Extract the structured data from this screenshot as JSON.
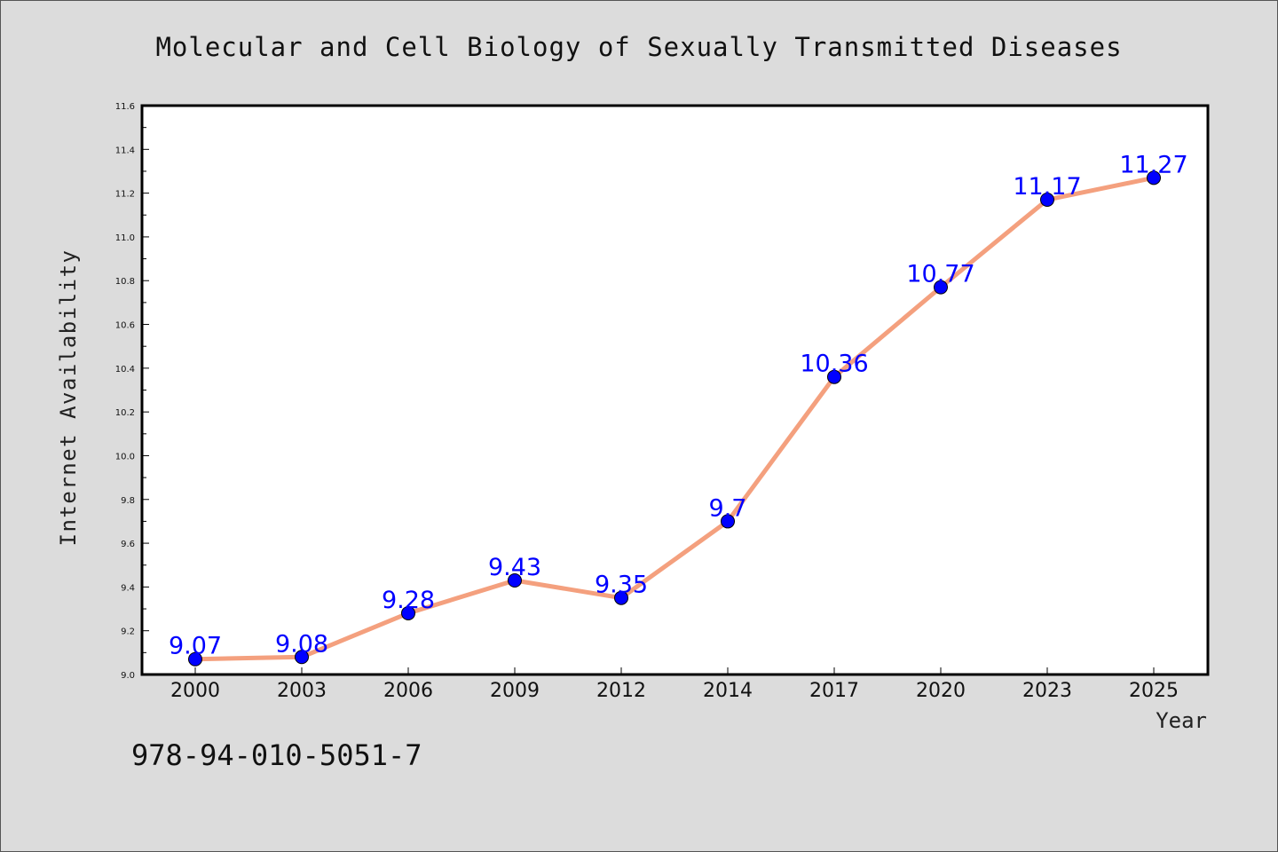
{
  "chart_data": {
    "type": "line",
    "title": "Molecular and Cell Biology of Sexually Transmitted Diseases",
    "xlabel": "Year",
    "ylabel": "Internet Availability",
    "categories": [
      "2000",
      "2003",
      "2006",
      "2009",
      "2012",
      "2014",
      "2017",
      "2020",
      "2023",
      "2025"
    ],
    "values": [
      9.07,
      9.08,
      9.28,
      9.43,
      9.35,
      9.7,
      10.36,
      10.77,
      11.17,
      11.27
    ],
    "data_labels": [
      "9.07",
      "9.08",
      "9.28",
      "9.43",
      "9.35",
      "9.7",
      "10.36",
      "10.77",
      "11.17",
      "11.27"
    ],
    "ylim": [
      9.0,
      11.6
    ],
    "yticks": [
      "9.0",
      "9.2",
      "9.4",
      "9.6",
      "9.8",
      "10.0",
      "10.2",
      "10.4",
      "10.6",
      "10.8",
      "11.0",
      "11.2",
      "11.4",
      "11.6"
    ],
    "grid": false,
    "legend": "none",
    "colors": {
      "line": "#f4a07e",
      "marker": "#0000ff",
      "label": "#0000ff",
      "background": "#dcdcdc",
      "plot_area": "#ffffff"
    }
  },
  "footnote": "978-94-010-5051-7"
}
